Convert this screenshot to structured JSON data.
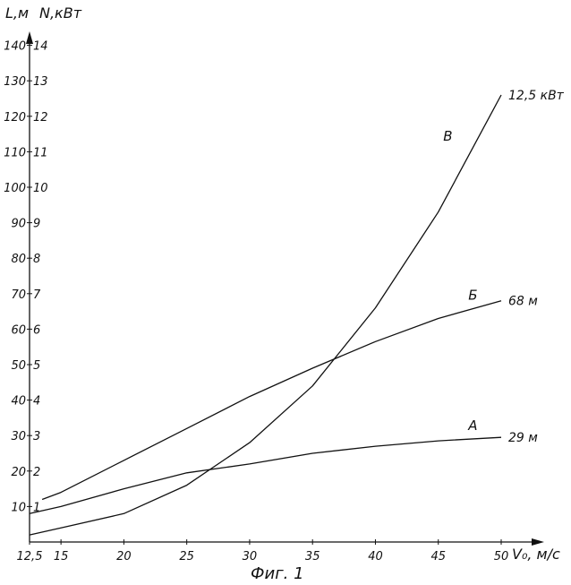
{
  "chart_data": {
    "type": "line",
    "caption": "Фиг. 1",
    "y_left_label": "L,м",
    "y_right_label": "N,кВт",
    "x_label": "V₀, м/с",
    "x_ticks": [
      "12,5",
      "15",
      "20",
      "25",
      "30",
      "35",
      "40",
      "45",
      "50"
    ],
    "x_tick_values": [
      12.5,
      15,
      20,
      25,
      30,
      35,
      40,
      45,
      50
    ],
    "y_left_ticks": [
      "10",
      "20",
      "30",
      "40",
      "50",
      "60",
      "70",
      "80",
      "90",
      "100",
      "110",
      "120",
      "130",
      "140"
    ],
    "y_right_ticks": [
      "1",
      "2",
      "3",
      "4",
      "5",
      "6",
      "7",
      "8",
      "9",
      "10",
      "11",
      "12",
      "13",
      "14"
    ],
    "xlim": [
      12.5,
      50
    ],
    "y_left_lim": [
      0,
      145
    ],
    "y_right_lim": [
      0,
      14.5
    ],
    "series": [
      {
        "name": "А",
        "axis": "left",
        "end_label": "29 м",
        "x": [
          12.5,
          15,
          20,
          25,
          30,
          35,
          40,
          45,
          50
        ],
        "y": [
          8,
          10,
          15,
          19.5,
          22,
          25,
          27,
          28.5,
          29.5
        ]
      },
      {
        "name": "Б",
        "axis": "left",
        "end_label": "68 м",
        "x": [
          13.5,
          15,
          20,
          25,
          30,
          35,
          40,
          45,
          50
        ],
        "y": [
          12,
          14,
          23,
          32,
          41,
          49,
          56.5,
          63,
          68
        ]
      },
      {
        "name": "В",
        "axis": "right",
        "end_label": "12,5 кВт",
        "x": [
          12.5,
          15,
          20,
          25,
          30,
          35,
          40,
          45,
          50
        ],
        "y": [
          0.2,
          0.4,
          0.8,
          1.6,
          2.8,
          4.4,
          6.6,
          9.3,
          12.6
        ]
      }
    ]
  }
}
